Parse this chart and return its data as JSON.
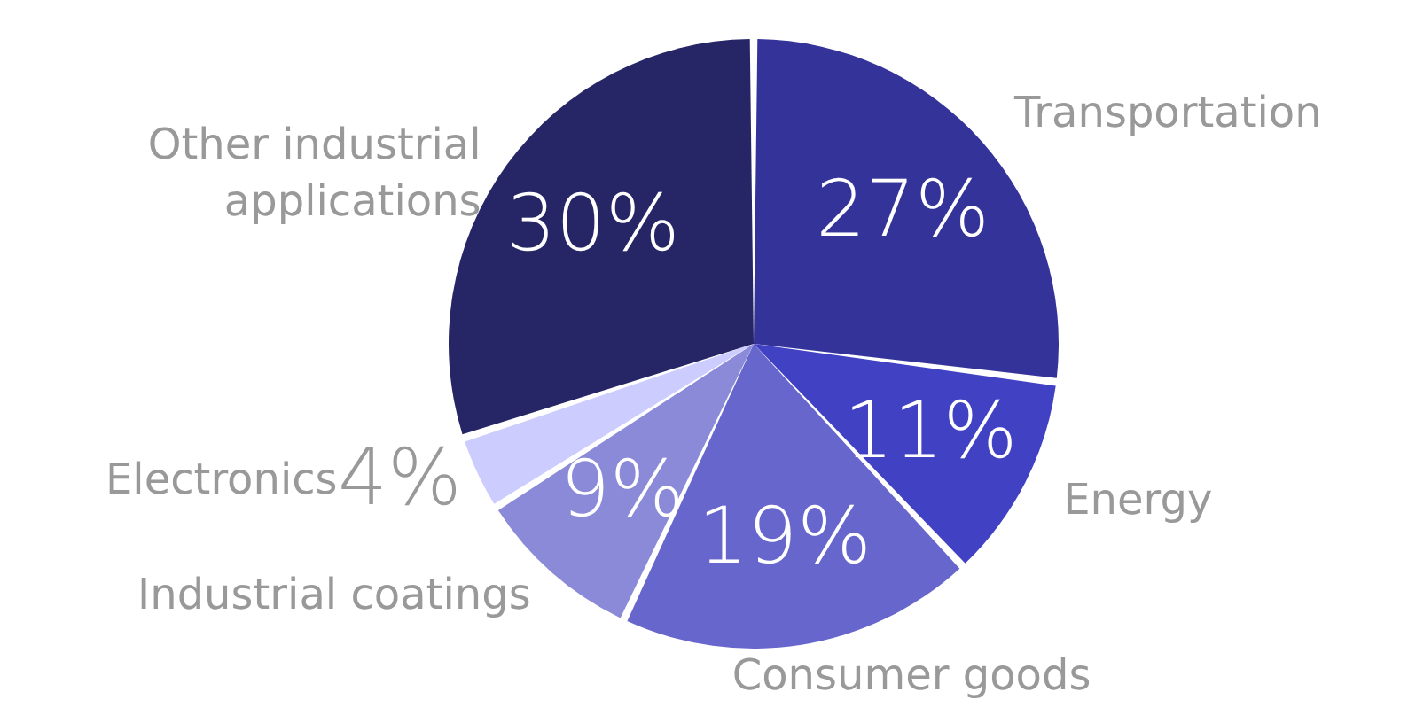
{
  "chart_data": {
    "type": "pie",
    "categories": [
      "Transportation",
      "Energy",
      "Consumer goods",
      "Industrial coatings",
      "Electronics",
      "Other industrial applications"
    ],
    "values": [
      27,
      11,
      19,
      9,
      4,
      30
    ],
    "colors": [
      "#333399",
      "#4141c4",
      "#6666cc",
      "#8a8ad8",
      "#ccccff",
      "#262666"
    ],
    "value_labels": [
      "27%",
      "11%",
      "19%",
      "9%",
      "4%",
      "30%"
    ]
  }
}
